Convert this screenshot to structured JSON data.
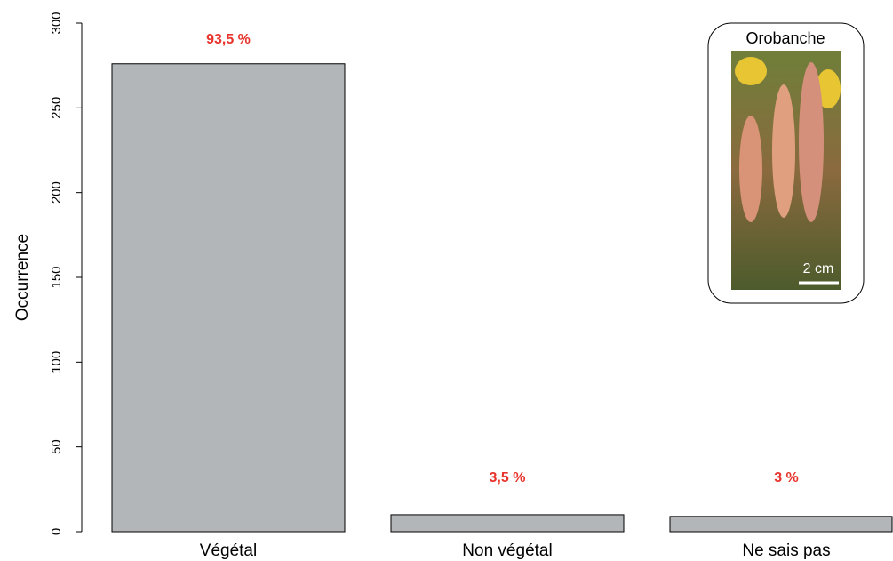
{
  "chart_data": {
    "type": "bar",
    "y_label": "Occurrence",
    "categories": [
      "Végétal",
      "Non végétal",
      "Ne sais pas"
    ],
    "values": [
      276,
      10,
      9
    ],
    "color": "#b3b6b8",
    "ylim": [
      0,
      300
    ],
    "yticks": [
      0,
      50,
      100,
      150,
      200,
      250,
      300
    ],
    "grid": false,
    "annotations": [
      {
        "value": 93.5,
        "label": "93,5 %"
      },
      {
        "value": 3.5,
        "label": "3,5 %"
      },
      {
        "value": 3,
        "label": "3 %"
      }
    ],
    "annotation_color": "#e8342c",
    "inset": {
      "title": "Orobanche",
      "scale_label": "2 cm"
    }
  }
}
